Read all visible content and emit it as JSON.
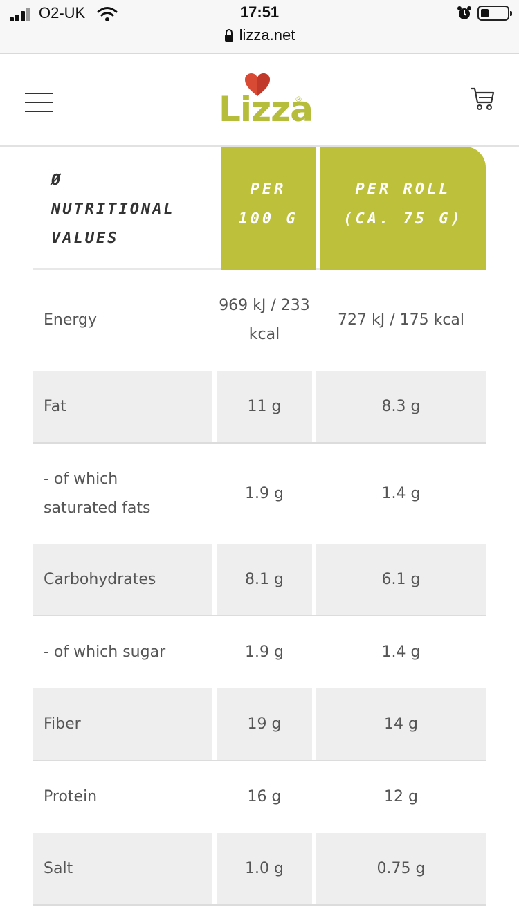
{
  "status_bar": {
    "carrier": "O2-UK",
    "time": "17:51",
    "url": "lizza.net"
  },
  "header": {
    "logo_text": "Lizza",
    "logo_reg": "®",
    "brand_color": "#b5bd3a"
  },
  "table": {
    "head": {
      "label_symbol": "Ø",
      "label": "NUTRITIONAL VALUES",
      "col1": "PER 100 G",
      "col2": "PER ROLL (CA. 75 G)"
    },
    "header_color": "#bcc03a",
    "rows": [
      {
        "name": "Energy",
        "per100": "969 kJ / 233 kcal",
        "perRoll": "727 kJ / 175 kcal"
      },
      {
        "name": "Fat",
        "per100": "11 g",
        "perRoll": "8.3 g"
      },
      {
        "name": "- of which saturated fats",
        "per100": "1.9 g",
        "perRoll": "1.4 g"
      },
      {
        "name": "Carbohydrates",
        "per100": "8.1 g",
        "perRoll": "6.1 g"
      },
      {
        "name": "- of which sugar",
        "per100": "1.9 g",
        "perRoll": "1.4 g"
      },
      {
        "name": "Fiber",
        "per100": "19 g",
        "perRoll": "14 g"
      },
      {
        "name": "Protein",
        "per100": "16 g",
        "perRoll": "12 g"
      },
      {
        "name": "Salt",
        "per100": "1.0 g",
        "perRoll": "0.75 g"
      }
    ]
  }
}
